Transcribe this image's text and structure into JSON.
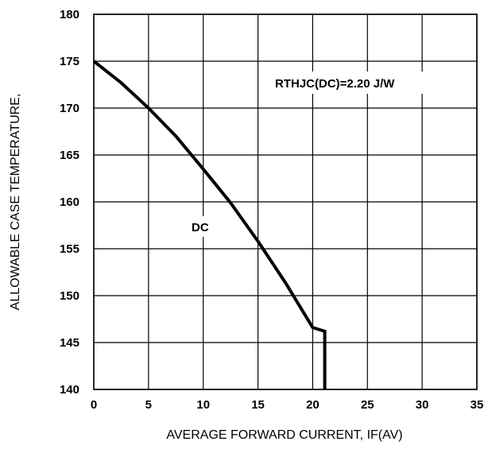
{
  "chart_data": {
    "type": "line",
    "xlabel": "AVERAGE FORWARD CURRENT, IF(AV)",
    "ylabel": "ALLOWABLE CASE TEMPERATURE,",
    "xlim": [
      0,
      35
    ],
    "ylim": [
      140,
      180
    ],
    "x_ticks": [
      "0",
      "5",
      "10",
      "15",
      "20",
      "25",
      "30",
      "35"
    ],
    "y_ticks": [
      "140",
      "145",
      "150",
      "155",
      "160",
      "165",
      "170",
      "175",
      "180"
    ],
    "grid": true,
    "series": [
      {
        "name": "DC",
        "x": [
          0,
          2.5,
          5,
          7.5,
          10,
          12.5,
          15,
          17.5,
          20,
          21.1,
          21.1
        ],
        "y": [
          175,
          172.7,
          170,
          167.0,
          163.5,
          159.9,
          155.8,
          151.4,
          146.6,
          146.2,
          140
        ]
      }
    ],
    "annotations": [
      {
        "text": "RTHJC(DC)=2.20 J/W"
      },
      {
        "text": "DC"
      }
    ]
  }
}
